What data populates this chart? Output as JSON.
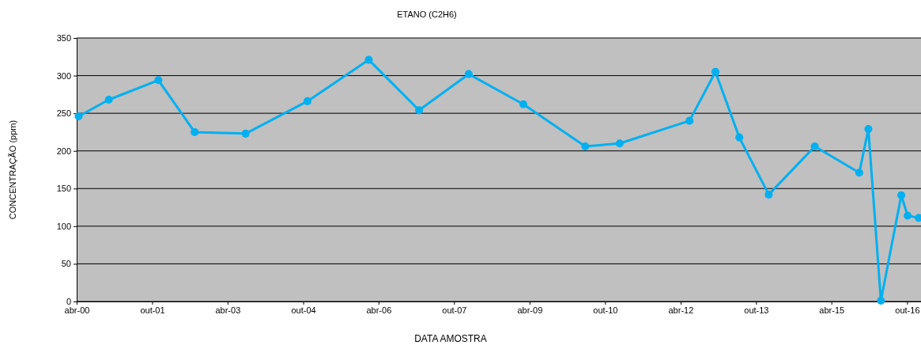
{
  "chart_data": {
    "type": "line",
    "title": "ETANO (C2H6)",
    "xlabel": "DATA AMOSTRA",
    "ylabel": "CONCENTRAÇÃO (ppm)",
    "x": [
      "2000-04-15",
      "2000-11-20",
      "2001-11-15",
      "2002-08-05",
      "2003-08-10",
      "2004-11-01",
      "2006-01-20",
      "2007-01-20",
      "2008-01-15",
      "2009-02-15",
      "2010-05-10",
      "2011-01-15",
      "2012-06-05",
      "2012-12-10",
      "2013-06-01",
      "2014-01-01",
      "2014-12-01",
      "2015-10-20",
      "2015-12-25",
      "2016-03-25",
      "2016-08-20",
      "2016-10-05",
      "2016-12-25"
    ],
    "series": [
      {
        "color": "#00b0f0",
        "values": [
          246,
          268,
          294,
          225,
          223,
          266,
          321,
          254,
          302,
          262,
          206,
          210,
          240,
          305,
          218,
          142,
          206,
          171,
          229,
          1,
          141,
          114,
          111
        ]
      }
    ],
    "xlim": [
      "2000-04-01",
      "2017-01-10"
    ],
    "ylim": [
      0,
      350
    ],
    "xticks": [
      {
        "value": "2000-04-01",
        "label": "abr-00"
      },
      {
        "value": "2001-10-01",
        "label": "out-01"
      },
      {
        "value": "2003-04-01",
        "label": "abr-03"
      },
      {
        "value": "2004-10-01",
        "label": "out-04"
      },
      {
        "value": "2006-04-01",
        "label": "abr-06"
      },
      {
        "value": "2007-10-01",
        "label": "out-07"
      },
      {
        "value": "2009-04-01",
        "label": "abr-09"
      },
      {
        "value": "2010-10-01",
        "label": "out-10"
      },
      {
        "value": "2012-04-01",
        "label": "abr-12"
      },
      {
        "value": "2013-10-01",
        "label": "out-13"
      },
      {
        "value": "2015-04-01",
        "label": "abr-15"
      },
      {
        "value": "2016-10-01",
        "label": "out-16"
      }
    ],
    "yticks": [
      0,
      50,
      100,
      150,
      200,
      250,
      300,
      350
    ],
    "grid": "y",
    "marker": "circle",
    "line_style": "solid"
  }
}
